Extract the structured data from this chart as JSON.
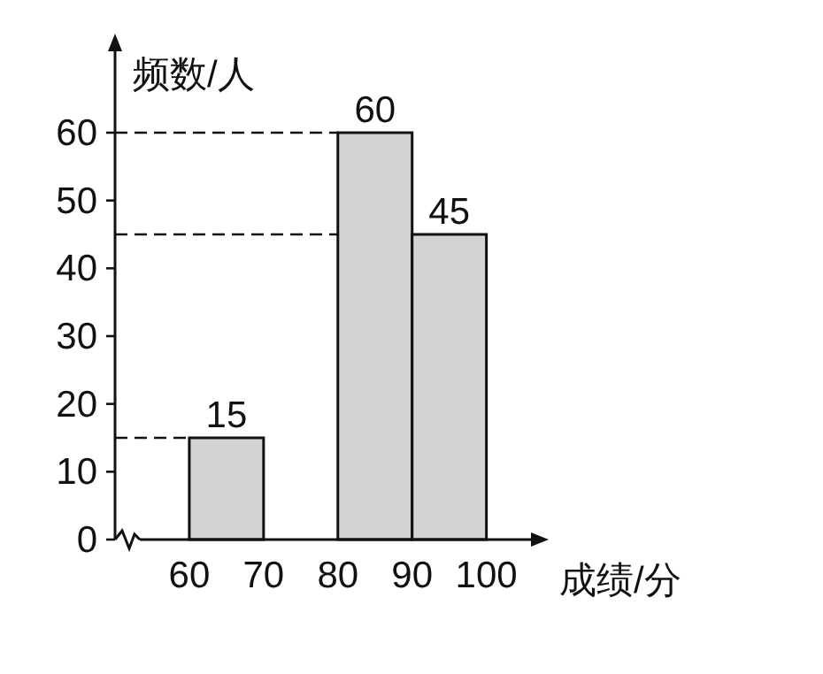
{
  "chart_data": {
    "type": "histogram",
    "xlabel": "成绩/分",
    "ylabel": "频数/人",
    "bins": [
      60,
      70,
      80,
      90,
      100
    ],
    "values": [
      15,
      0,
      60,
      45
    ],
    "value_labels": [
      "15",
      null,
      "60",
      "45"
    ],
    "color": "#d4d4d4",
    "xlim": [
      50,
      106
    ],
    "ylim": [
      0,
      72
    ],
    "xticks": [
      60,
      70,
      80,
      90,
      100
    ],
    "yticks": [
      0,
      10,
      20,
      30,
      40,
      50,
      60
    ],
    "ref_lines": [
      {
        "axis": "y",
        "value": 15,
        "line_style": "dashed"
      },
      {
        "axis": "y",
        "value": 60,
        "line_style": "dashed"
      },
      {
        "axis": "y",
        "value": 45,
        "line_style": "dashed"
      }
    ]
  }
}
